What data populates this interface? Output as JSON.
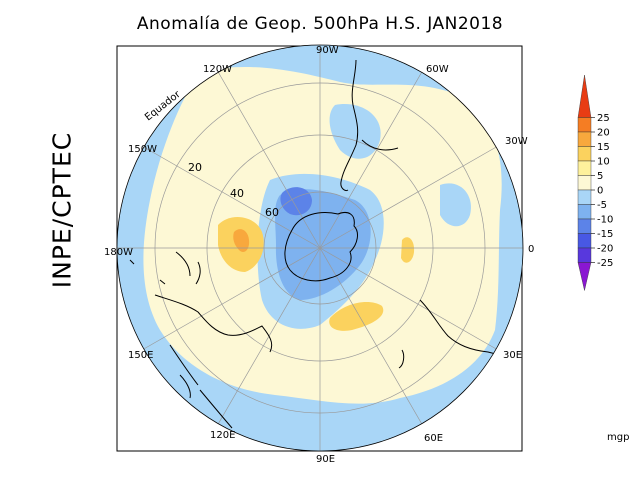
{
  "title": "Anomalía de Geop. 500hPa H.S. JAN2018",
  "side_label": "INPE/CPTEC",
  "equator_label": "Equador",
  "longitude_labels": [
    "0",
    "30W",
    "60W",
    "90W",
    "120W",
    "150W",
    "180W",
    "150E",
    "120E",
    "90E",
    "60E",
    "30E"
  ],
  "latitude_labels": [
    "20",
    "40",
    "60"
  ],
  "colorbar": {
    "unit": "mgp",
    "ticks": [
      "25",
      "20",
      "15",
      "10",
      "5",
      "0",
      "-5",
      "-10",
      "-15",
      "-20",
      "-25"
    ],
    "colors": [
      "#e83c14",
      "#f57d23",
      "#f8a83d",
      "#fbd25e",
      "#fef19c",
      "#fdf8d5",
      "#a9d6f7",
      "#7eb2ef",
      "#5c83e8",
      "#4858e4",
      "#5838dd",
      "#8a17d2"
    ]
  }
}
